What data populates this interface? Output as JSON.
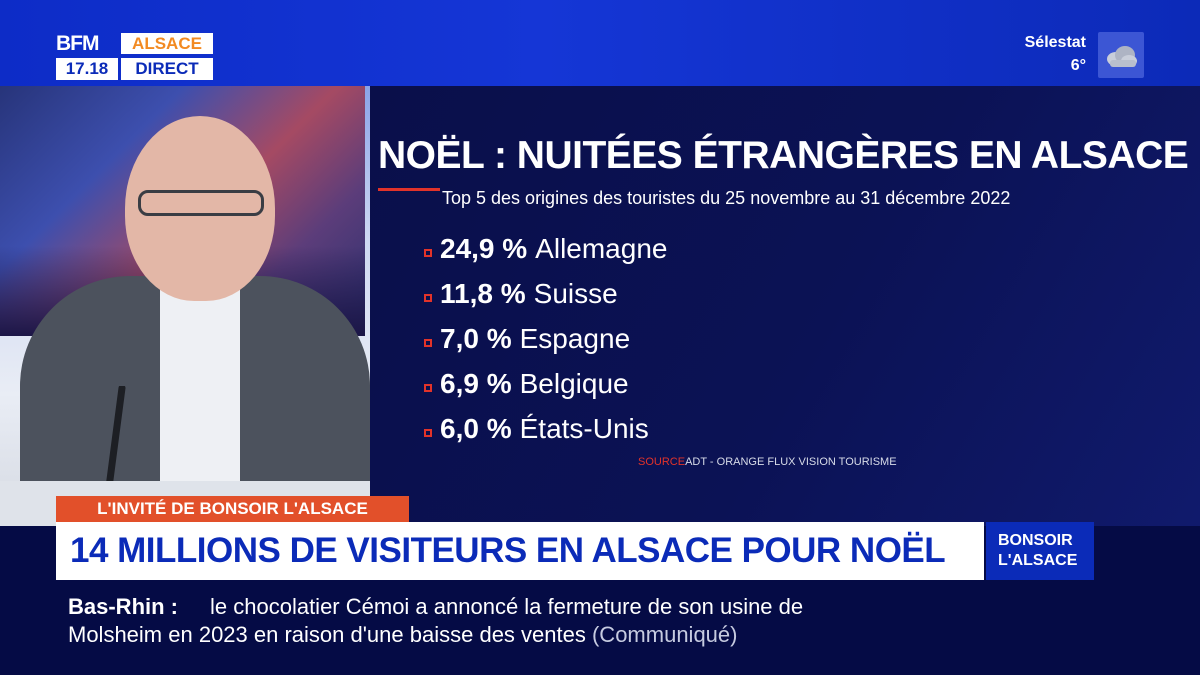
{
  "channel": {
    "brand": "BFM",
    "region": "ALSACE",
    "time": "17.18",
    "status": "DIRECT"
  },
  "weather": {
    "city": "Sélestat",
    "temperature": "6°",
    "icon": "cloud-icon"
  },
  "panel": {
    "title": "NOËL : NUITÉES ÉTRANGÈRES EN ALSACE",
    "subtitle": "Top 5 des origines des touristes du 25 novembre au 31 décembre 2022",
    "items": [
      {
        "percent": "24,9 %",
        "country": "Allemagne"
      },
      {
        "percent": "11,8 %",
        "country": "Suisse"
      },
      {
        "percent": "7,0 %",
        "country": "Espagne"
      },
      {
        "percent": "6,9 %",
        "country": "Belgique"
      },
      {
        "percent": "6,0 %",
        "country": "États-Unis"
      }
    ],
    "source_label": "SOURCE",
    "source_text": "ADT - ORANGE FLUX VISION TOURISME"
  },
  "lower_third": {
    "invite": "L'INVITÉ DE BONSOIR L'ALSACE",
    "headline": "14 MILLIONS DE VISITEURS EN ALSACE POUR NOËL",
    "show_line1": "BONSOIR",
    "show_line2": "L'ALSACE"
  },
  "ticker": {
    "tag": "Bas-Rhin :",
    "line1": "le chocolatier Cémoi a annoncé la fermeture de son usine de",
    "line2": "Molsheim en 2023 en raison d'une baisse des ventes",
    "source": "(Communiqué)"
  },
  "colors": {
    "brand_blue": "#0b2bb8",
    "accent_orange": "#f28a22",
    "accent_red": "#e2332a",
    "panel_navy": "#0a0f4a"
  }
}
